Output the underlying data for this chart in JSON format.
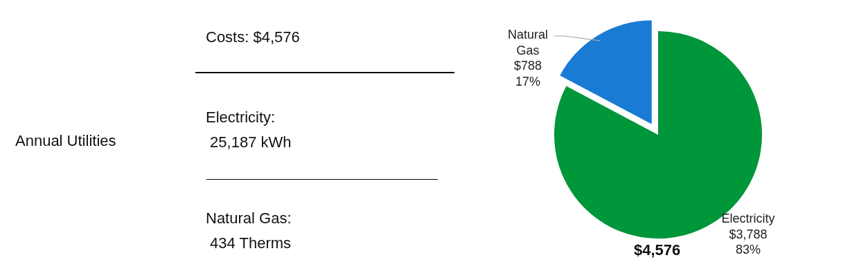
{
  "chart_data": {
    "type": "pie",
    "categories": [
      "Electricity",
      "Natural Gas"
    ],
    "values": [
      3788,
      788
    ],
    "colors": [
      "#00963a",
      "#1a7bd4"
    ],
    "value_labels": [
      "$3,788\n83%",
      "$788\n17%"
    ],
    "annotations": [
      "Annual Utilities",
      "Costs: $4,576",
      "Electricity:\n 25,187 kWh",
      "Natural Gas:\n 434 Therms",
      "$4,576"
    ]
  }
}
